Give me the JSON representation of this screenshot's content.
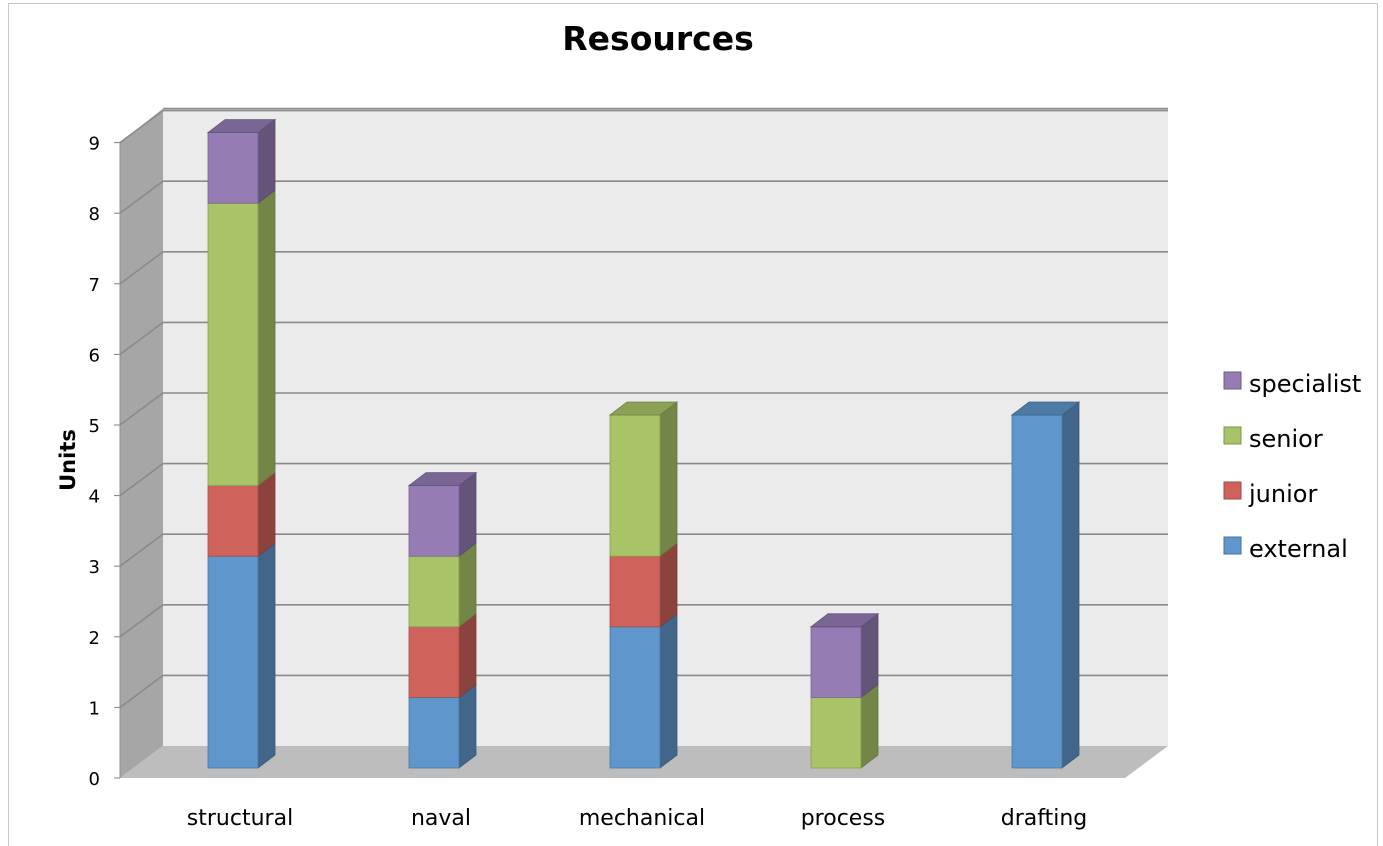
{
  "chart_data": {
    "type": "bar",
    "stacked": true,
    "three_d": true,
    "title": "Resources",
    "xlabel": "",
    "ylabel": "Units",
    "ylim": [
      0,
      9
    ],
    "yticks": [
      "0",
      "1",
      "2",
      "3",
      "4",
      "5",
      "6",
      "7",
      "8",
      "9"
    ],
    "grid": true,
    "legend_position": "right",
    "categories": [
      "structural",
      "naval",
      "mechanical",
      "process",
      "drafting"
    ],
    "series": [
      {
        "name": "external",
        "color": "#5f96cb",
        "values": [
          3,
          1,
          2,
          0,
          5
        ]
      },
      {
        "name": "junior",
        "color": "#cf625a",
        "values": [
          1,
          1,
          1,
          0,
          0
        ]
      },
      {
        "name": "senior",
        "color": "#a9c468",
        "values": [
          4,
          1,
          2,
          1,
          0
        ]
      },
      {
        "name": "specialist",
        "color": "#957cb4",
        "values": [
          1,
          1,
          0,
          1,
          0
        ]
      }
    ],
    "legend_order": [
      "specialist",
      "senior",
      "junior",
      "external"
    ]
  }
}
